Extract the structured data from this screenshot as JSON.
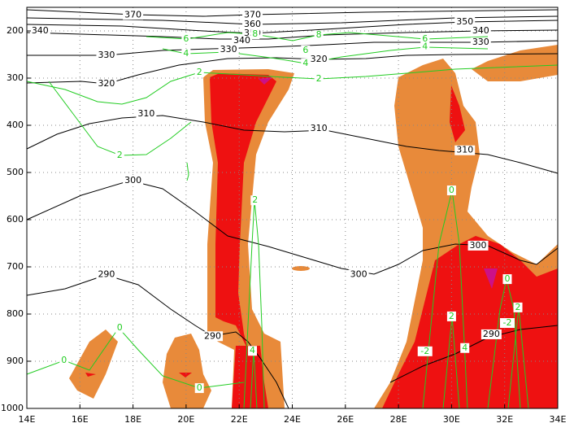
{
  "chart_data": {
    "type": "contour",
    "xlim": [
      14,
      34
    ],
    "ylim": [
      1000,
      150
    ],
    "xticks": [
      {
        "value": 14,
        "label": "14E"
      },
      {
        "value": 16,
        "label": "16E"
      },
      {
        "value": 18,
        "label": "18E"
      },
      {
        "value": 20,
        "label": "20E"
      },
      {
        "value": 22,
        "label": "22E"
      },
      {
        "value": 24,
        "label": "24E"
      },
      {
        "value": 26,
        "label": "26E"
      },
      {
        "value": 28,
        "label": "28E"
      },
      {
        "value": 30,
        "label": "30E"
      },
      {
        "value": 32,
        "label": "32E"
      },
      {
        "value": 34,
        "label": "34E"
      }
    ],
    "yticks": [
      200,
      300,
      400,
      500,
      600,
      700,
      800,
      900,
      1000
    ],
    "grid": true,
    "isentropes": {
      "color": "#000000",
      "labels": [
        {
          "value": 370,
          "lon": 18.0,
          "p": 166
        },
        {
          "value": 370,
          "lon": 22.5,
          "p": 166
        },
        {
          "value": 360,
          "lon": 22.5,
          "p": 186
        },
        {
          "value": 350,
          "lon": 22.5,
          "p": 205
        },
        {
          "value": 340,
          "lon": 22.1,
          "p": 221
        },
        {
          "value": 340,
          "lon": 14.5,
          "p": 200
        },
        {
          "value": 350,
          "lon": 30.5,
          "p": 181
        },
        {
          "value": 340,
          "lon": 31.1,
          "p": 200
        },
        {
          "value": 330,
          "lon": 31.1,
          "p": 224
        },
        {
          "value": 320,
          "lon": 25.0,
          "p": 260
        },
        {
          "value": 330,
          "lon": 21.6,
          "p": 240
        },
        {
          "value": 330,
          "lon": 17.0,
          "p": 252
        },
        {
          "value": 320,
          "lon": 17.0,
          "p": 312
        },
        {
          "value": 310,
          "lon": 18.5,
          "p": 376
        },
        {
          "value": 310,
          "lon": 25.0,
          "p": 407
        },
        {
          "value": 310,
          "lon": 30.5,
          "p": 453
        },
        {
          "value": 300,
          "lon": 18.0,
          "p": 517
        },
        {
          "value": 300,
          "lon": 31.0,
          "p": 655
        },
        {
          "value": 300,
          "lon": 26.5,
          "p": 716
        },
        {
          "value": 290,
          "lon": 17.0,
          "p": 716
        },
        {
          "value": 290,
          "lon": 21.0,
          "p": 847
        },
        {
          "value": 290,
          "lon": 31.5,
          "p": 843
        }
      ]
    },
    "isotachs": {
      "color": "#22cc22",
      "labels": [
        {
          "value": 6,
          "lon": 20.0,
          "p": 217
        },
        {
          "value": 8,
          "lon": 22.6,
          "p": 207
        },
        {
          "value": 8,
          "lon": 25.0,
          "p": 209
        },
        {
          "value": 6,
          "lon": 24.5,
          "p": 241
        },
        {
          "value": 4,
          "lon": 20.0,
          "p": 248
        },
        {
          "value": 4,
          "lon": 24.5,
          "p": 269
        },
        {
          "value": 2,
          "lon": 20.5,
          "p": 288
        },
        {
          "value": 2,
          "lon": 25.0,
          "p": 302
        },
        {
          "value": 2,
          "lon": 17.5,
          "p": 464
        },
        {
          "value": 6,
          "lon": 29.0,
          "p": 217
        },
        {
          "value": 4,
          "lon": 29.0,
          "p": 234
        },
        {
          "value": 2,
          "lon": 22.6,
          "p": 559
        },
        {
          "value": 0,
          "lon": 30.0,
          "p": 538
        },
        {
          "value": 0,
          "lon": 32.1,
          "p": 726
        },
        {
          "value": 2,
          "lon": 30.0,
          "p": 805
        },
        {
          "value": -2,
          "lon": 32.1,
          "p": 819
        },
        {
          "value": 2,
          "lon": 32.5,
          "p": 786
        },
        {
          "value": 4,
          "lon": 30.5,
          "p": 872
        },
        {
          "value": -2,
          "lon": 29.0,
          "p": 879
        },
        {
          "value": 4,
          "lon": 22.5,
          "p": 878
        },
        {
          "value": 0,
          "lon": 17.5,
          "p": 829
        },
        {
          "value": 0,
          "lon": 15.4,
          "p": 898
        },
        {
          "value": 0,
          "lon": 20.5,
          "p": 957
        }
      ]
    }
  }
}
